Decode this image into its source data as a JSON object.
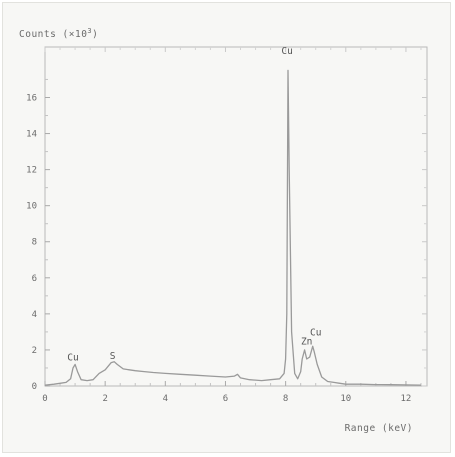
{
  "chart_data": {
    "type": "line",
    "title": "",
    "ylabel": "Counts (×10³)",
    "ylabel_main": "Counts (×10",
    "ylabel_exp": "3",
    "ylabel_close": ")",
    "xlabel": "Range (keV)",
    "xlim": [
      0,
      12.7
    ],
    "ylim": [
      0,
      18.8
    ],
    "x_ticks": [
      0,
      2,
      4,
      6,
      8,
      10,
      12
    ],
    "y_ticks": [
      0,
      2,
      4,
      6,
      8,
      10,
      12,
      14,
      16
    ],
    "x_tick_labels": [
      "0",
      "2",
      "4",
      "6",
      "8",
      "10",
      "12"
    ],
    "y_tick_labels": [
      "0",
      "2",
      "4",
      "6",
      "8",
      "10",
      "12",
      "14",
      "16"
    ],
    "grid": false,
    "line_color": "#9a9a9a",
    "series": [
      {
        "x": [
          0.0,
          0.3,
          0.5,
          0.7,
          0.85,
          0.93,
          1.0,
          1.08,
          1.2,
          1.4,
          1.6,
          1.8,
          2.0,
          2.1,
          2.2,
          2.3,
          2.4,
          2.6,
          2.8,
          3.0,
          3.3,
          3.6,
          4.0,
          4.5,
          5.0,
          5.5,
          6.0,
          6.3,
          6.4,
          6.5,
          6.8,
          7.2,
          7.5,
          7.8,
          7.95,
          8.0,
          8.04,
          8.08,
          8.12,
          8.2,
          8.3,
          8.4,
          8.5,
          8.55,
          8.63,
          8.7,
          8.8,
          8.9,
          8.95,
          9.05,
          9.2,
          9.4,
          9.6,
          9.8,
          10.0,
          10.5,
          11.0,
          11.5,
          12.0,
          12.5
        ],
        "y": [
          0.05,
          0.1,
          0.15,
          0.2,
          0.4,
          1.0,
          1.2,
          0.8,
          0.35,
          0.3,
          0.35,
          0.7,
          0.9,
          1.1,
          1.3,
          1.35,
          1.2,
          0.95,
          0.9,
          0.85,
          0.8,
          0.75,
          0.7,
          0.65,
          0.6,
          0.55,
          0.5,
          0.55,
          0.65,
          0.45,
          0.35,
          0.3,
          0.35,
          0.4,
          0.7,
          1.5,
          4.0,
          17.5,
          12.0,
          3.0,
          0.7,
          0.4,
          0.8,
          1.5,
          2.0,
          1.5,
          1.6,
          2.2,
          1.9,
          1.2,
          0.5,
          0.25,
          0.2,
          0.15,
          0.1,
          0.1,
          0.08,
          0.07,
          0.06,
          0.05
        ]
      }
    ],
    "annotations": [
      {
        "text": "Cu",
        "x": 0.93,
        "y": 1.3
      },
      {
        "text": "S",
        "x": 2.25,
        "y": 1.4
      },
      {
        "text": "Cu",
        "x": 8.05,
        "y": 18.3
      },
      {
        "text": "Zn",
        "x": 8.7,
        "y": 2.2
      },
      {
        "text": "Cu",
        "x": 9.0,
        "y": 2.7
      }
    ]
  }
}
